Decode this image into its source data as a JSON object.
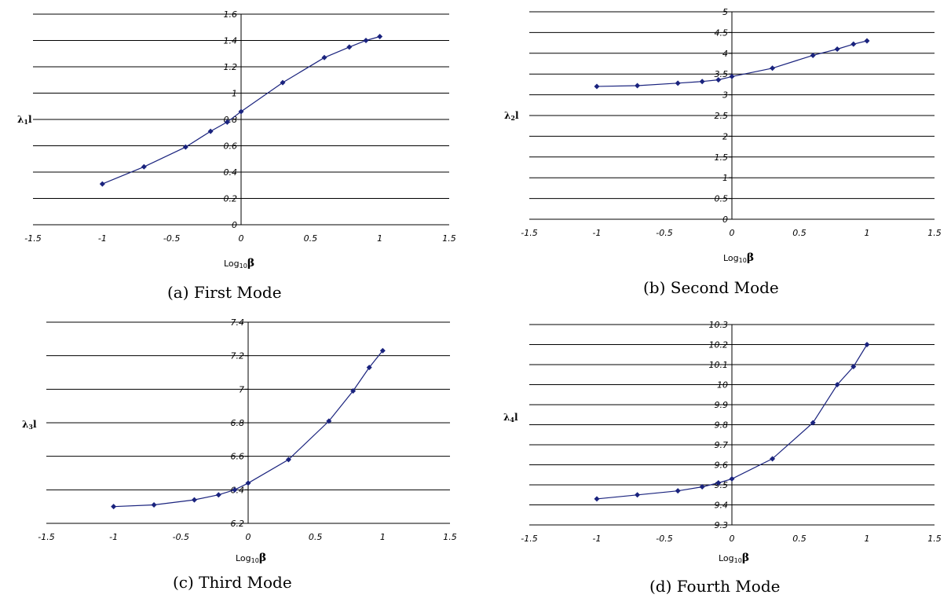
{
  "chart_data": [
    {
      "type": "line",
      "caption": "(a) First Mode",
      "ylabel": "λ₁l",
      "ylabel_main": "λ",
      "ylabel_sub": "1",
      "ylabel_tail": "l",
      "xlabel_main": "Log",
      "xlabel_sub": "10",
      "xlabel_sym": "β",
      "xlim": [
        -1.5,
        1.5
      ],
      "ylim": [
        0,
        1.6
      ],
      "xticks": [
        "-1.5",
        "-1",
        "-0.5",
        "0",
        "0.5",
        "1",
        "1.5"
      ],
      "yticks": [
        "0",
        "0.2",
        "0.4",
        "0.6",
        "0.8",
        "1",
        "1.2",
        "1.4",
        "1.6"
      ],
      "grid": "horizontal",
      "series": [
        {
          "x": [
            -1,
            -0.7,
            -0.4,
            -0.22,
            -0.1,
            0,
            0.3,
            0.6,
            0.78,
            0.9,
            1
          ],
          "y": [
            0.31,
            0.44,
            0.59,
            0.71,
            0.78,
            0.86,
            1.08,
            1.27,
            1.35,
            1.4,
            1.43
          ]
        }
      ],
      "color": "#1a237e"
    },
    {
      "type": "line",
      "caption": "(b) Second Mode",
      "ylabel": "λ₂l",
      "ylabel_main": "λ",
      "ylabel_sub": "2",
      "ylabel_tail": "l",
      "xlabel_main": "Log",
      "xlabel_sub": "10",
      "xlabel_sym": "β",
      "xlim": [
        -1.5,
        1.5
      ],
      "ylim": [
        0,
        5
      ],
      "xticks": [
        "-1.5",
        "-1",
        "-0.5",
        "0",
        "0.5",
        "1",
        "1.5"
      ],
      "yticks": [
        "0",
        "0.5",
        "1",
        "1.5",
        "2",
        "2.5",
        "3",
        "3.5",
        "4",
        "4.5",
        "5"
      ],
      "grid": "horizontal",
      "series": [
        {
          "x": [
            -1,
            -0.7,
            -0.4,
            -0.22,
            -0.1,
            0,
            0.3,
            0.6,
            0.78,
            0.9,
            1
          ],
          "y": [
            3.2,
            3.22,
            3.28,
            3.32,
            3.36,
            3.44,
            3.64,
            3.95,
            4.1,
            4.22,
            4.3
          ]
        }
      ],
      "color": "#1a237e"
    },
    {
      "type": "line",
      "caption": "(c) Third Mode",
      "ylabel": "λ₃l",
      "ylabel_main": "λ",
      "ylabel_sub": "3",
      "ylabel_tail": "l",
      "xlabel_main": "Log",
      "xlabel_sub": "10",
      "xlabel_sym": "β",
      "xlim": [
        -1.5,
        1.5
      ],
      "ylim": [
        6.2,
        7.4
      ],
      "xticks": [
        "-1.5",
        "-1",
        "-0.5",
        "0",
        "0.5",
        "1",
        "1.5"
      ],
      "yticks": [
        "6.2",
        "6.4",
        "6.6",
        "6.8",
        "7",
        "7.2",
        "7.4"
      ],
      "grid": "horizontal",
      "series": [
        {
          "x": [
            -1,
            -0.7,
            -0.4,
            -0.22,
            -0.1,
            0,
            0.3,
            0.6,
            0.78,
            0.9,
            1
          ],
          "y": [
            6.3,
            6.31,
            6.34,
            6.37,
            6.4,
            6.44,
            6.58,
            6.81,
            6.99,
            7.13,
            7.23
          ]
        }
      ],
      "color": "#1a237e"
    },
    {
      "type": "line",
      "caption": "(d) Fourth Mode",
      "ylabel": "λ₄l",
      "ylabel_main": "λ",
      "ylabel_sub": "4",
      "ylabel_tail": "l",
      "xlabel_main": "Log",
      "xlabel_sub": "10",
      "xlabel_sym": "β",
      "xlim": [
        -1.5,
        1.5
      ],
      "ylim": [
        9.3,
        10.3
      ],
      "xticks": [
        "-1.5",
        "-1",
        "-0.5",
        "0",
        "0.5",
        "1",
        "1.5"
      ],
      "yticks": [
        "9.3",
        "9.4",
        "9.5",
        "9.6",
        "9.7",
        "9.8",
        "9.9",
        "10",
        "10.1",
        "10.2",
        "10.3"
      ],
      "grid": "horizontal",
      "series": [
        {
          "x": [
            -1,
            -0.7,
            -0.4,
            -0.22,
            -0.1,
            0,
            0.3,
            0.6,
            0.78,
            0.9,
            1
          ],
          "y": [
            9.43,
            9.45,
            9.47,
            9.49,
            9.51,
            9.53,
            9.63,
            9.81,
            10.0,
            10.09,
            10.2
          ]
        }
      ],
      "color": "#1a237e"
    }
  ]
}
